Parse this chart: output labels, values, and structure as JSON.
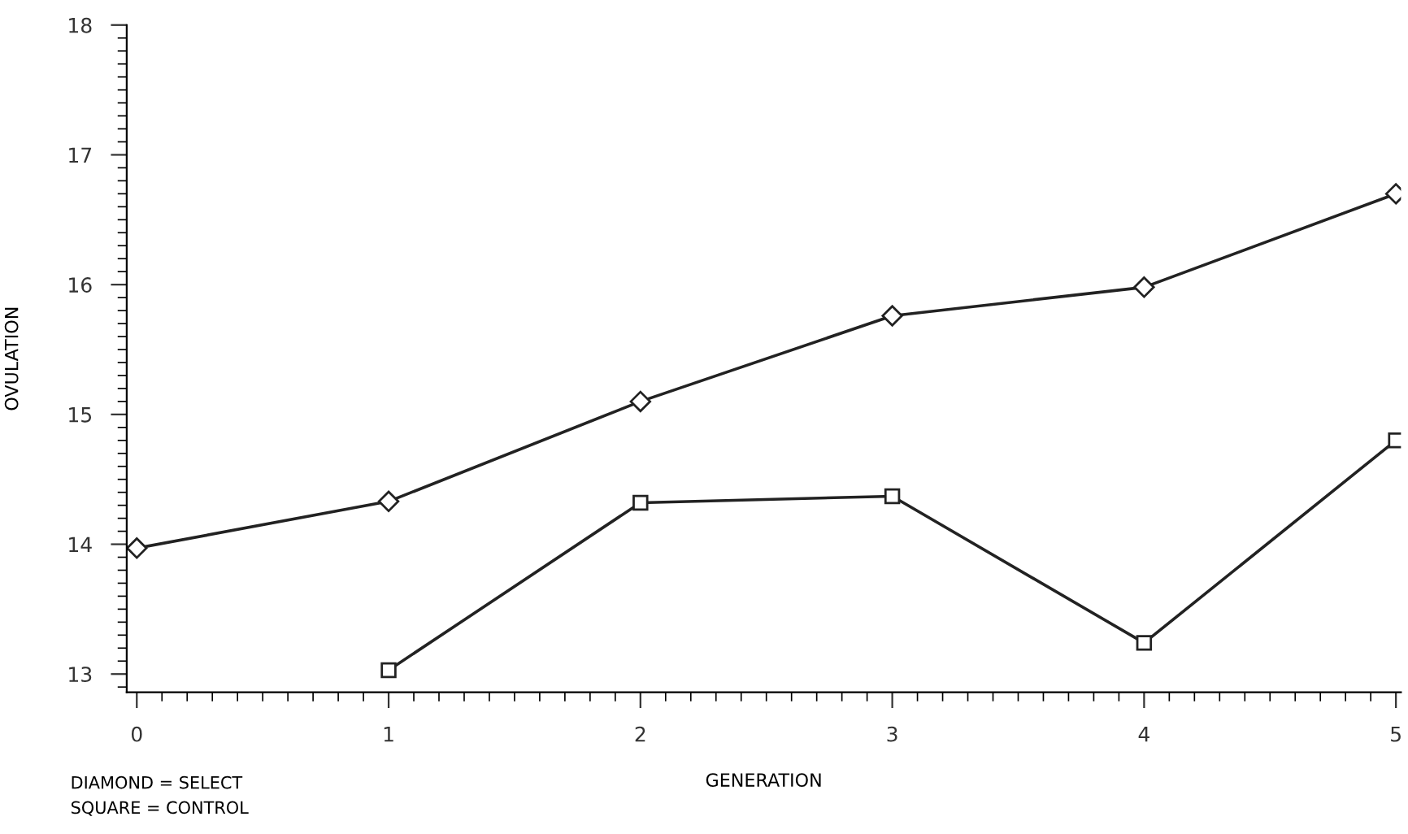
{
  "chart_data": {
    "type": "line",
    "xlabel": "GENERATION",
    "ylabel": "OVULATION",
    "x": [
      0,
      1,
      2,
      3,
      4,
      5
    ],
    "series": [
      {
        "color": "#222222",
        "marker": "diamond",
        "values": [
          13.97,
          14.33,
          15.1,
          15.76,
          15.98,
          16.7
        ]
      },
      {
        "color": "#222222",
        "marker": "square",
        "values": [
          null,
          13.03,
          14.32,
          14.37,
          13.24,
          14.8
        ]
      }
    ],
    "xlim": [
      -0.04,
      5.02
    ],
    "xticks": [
      0,
      1,
      2,
      3,
      4,
      5
    ],
    "ylim": [
      12.86,
      18
    ],
    "yticks": [
      13,
      14,
      15,
      16,
      17,
      18
    ],
    "grid": false,
    "legend": false,
    "line_style": "solid",
    "annotations": [
      "DIAMOND = SELECT",
      "SQUARE = CONTROL"
    ]
  }
}
